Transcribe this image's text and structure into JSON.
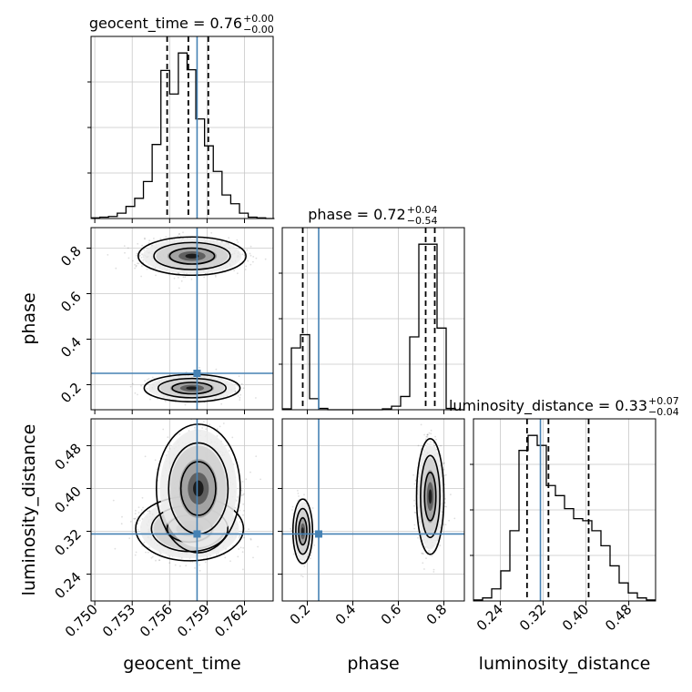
{
  "chart_data": {
    "type": "corner",
    "parameters": [
      "geocent_time",
      "phase",
      "luminosity_distance"
    ],
    "truths": {
      "geocent_time": 0.7582,
      "phase": 0.25,
      "luminosity_distance": 0.315
    },
    "colors": {
      "truth": "#4682b4",
      "hist": "#000000",
      "grid": "#c8c8c8"
    },
    "titles": [
      {
        "param": "geocent_time",
        "text": "geocent_time = 0.76",
        "sup": "+0.00",
        "sub": "−0.00"
      },
      {
        "param": "phase",
        "text": "phase = 0.72",
        "sup": "+0.04",
        "sub": "−0.54"
      },
      {
        "param": "luminosity_distance",
        "text": "luminosity_distance = 0.33",
        "sup": "+0.07",
        "sub": "−0.04"
      }
    ],
    "axes": {
      "geocent_time": {
        "label": "geocent_time",
        "range": [
          0.7497,
          0.7643
        ],
        "ticks": [
          0.75,
          0.753,
          0.756,
          0.759,
          0.762
        ],
        "ticklabels": [
          "0.750",
          "0.753",
          "0.756",
          "0.759",
          "0.762"
        ]
      },
      "phase": {
        "label": "phase",
        "range": [
          0.09,
          0.89
        ],
        "ticks": [
          0.2,
          0.4,
          0.6,
          0.8
        ],
        "ticklabels": [
          "0.2",
          "0.4",
          "0.6",
          "0.8"
        ]
      },
      "luminosity_distance": {
        "label": "luminosity_distance",
        "range": [
          0.19,
          0.53
        ],
        "ticks": [
          0.24,
          0.32,
          0.4,
          0.48
        ],
        "ticklabels": [
          "0.24",
          "0.32",
          "0.40",
          "0.48"
        ]
      }
    },
    "histograms": [
      {
        "param": "geocent_time",
        "bin_edges": [
          0.7497,
          0.7504,
          0.7511,
          0.7518,
          0.7525,
          0.7532,
          0.7539,
          0.7546,
          0.7553,
          0.756,
          0.7567,
          0.7574,
          0.7581,
          0.7588,
          0.7595,
          0.7602,
          0.7609,
          0.7616,
          0.7623,
          0.763,
          0.7637,
          0.7644
        ],
        "counts": [
          1,
          2,
          3,
          8,
          18,
          30,
          55,
          110,
          220,
          185,
          246,
          221,
          148,
          108,
          70,
          35,
          22,
          8,
          2,
          1,
          0
        ],
        "quantiles": [
          0.7558,
          0.7575,
          0.7591
        ]
      },
      {
        "param": "phase",
        "bin_edges": [
          0.09,
          0.13,
          0.17,
          0.21,
          0.25,
          0.29,
          0.33,
          0.37,
          0.41,
          0.45,
          0.49,
          0.53,
          0.57,
          0.61,
          0.65,
          0.69,
          0.73,
          0.77,
          0.81,
          0.85,
          0.89
        ],
        "counts": [
          2,
          140,
          170,
          25,
          3,
          0,
          0,
          0,
          0,
          0,
          0,
          2,
          8,
          30,
          165,
          375,
          375,
          185,
          3,
          0
        ],
        "quantiles": [
          0.18,
          0.72,
          0.76
        ]
      },
      {
        "param": "luminosity_distance",
        "bin_edges": [
          0.19,
          0.207,
          0.224,
          0.241,
          0.258,
          0.275,
          0.292,
          0.309,
          0.326,
          0.343,
          0.36,
          0.377,
          0.394,
          0.411,
          0.428,
          0.445,
          0.462,
          0.479,
          0.496,
          0.513,
          0.53
        ],
        "counts": [
          1,
          3,
          12,
          30,
          70,
          150,
          165,
          155,
          115,
          105,
          92,
          82,
          80,
          70,
          55,
          35,
          18,
          8,
          3,
          1
        ],
        "quantiles": [
          0.29,
          0.33,
          0.405
        ]
      }
    ],
    "joint_peaks": [
      {
        "x": "geocent_time",
        "y": "phase",
        "peaks": [
          [
            0.7578,
            0.76
          ],
          [
            0.7578,
            0.19
          ]
        ]
      },
      {
        "x": "geocent_time",
        "y": "luminosity_distance",
        "peaks": [
          [
            0.7576,
            0.325
          ],
          [
            0.7582,
            0.39
          ]
        ]
      },
      {
        "x": "phase",
        "y": "luminosity_distance",
        "peaks": [
          [
            0.18,
            0.32
          ],
          [
            0.74,
            0.39
          ]
        ]
      }
    ]
  }
}
